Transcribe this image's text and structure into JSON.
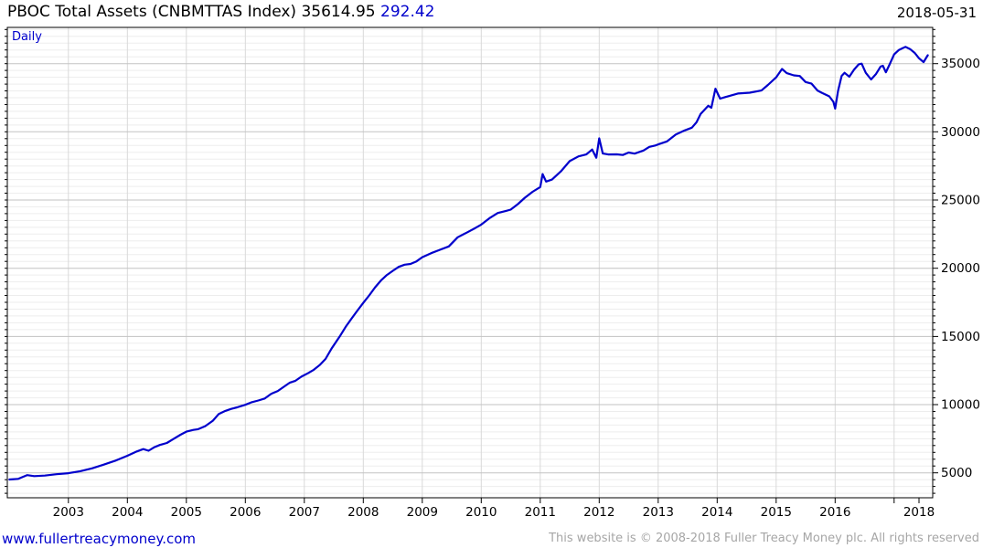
{
  "header": {
    "title_main": "PBOC Total Assets (CNBMTTAS Index) 35614.95",
    "title_change": "292.42",
    "date": "2018-05-31"
  },
  "chart": {
    "frequency_label": "Daily"
  },
  "footer": {
    "site": "www.fullertreacymoney.com",
    "copyright": "This website is © 2008-2018 Fuller Treacy Money plc. All rights reserved"
  },
  "colors": {
    "line": "#0000cc",
    "accent_text": "#0000cc",
    "major_grid": "#c3c3c3",
    "minor_grid": "#ededed",
    "year_grid": "#d9d9d9",
    "border": "#000000",
    "muted_text": "#a6a6a6"
  },
  "chart_data": {
    "type": "line",
    "title": "PBOC Total Assets (CNBMTTAS Index)",
    "frequency": "Daily",
    "last_value": 35614.95,
    "change": 292.42,
    "as_of_date": "2018-05-31",
    "ylim": [
      3200,
      37650
    ],
    "y_ticks": [
      5000,
      10000,
      15000,
      20000,
      25000,
      30000,
      35000
    ],
    "y_minor_step": 500,
    "x_tick_labels": [
      "2003",
      "2004",
      "2005",
      "2006",
      "2007",
      "2008",
      "2009",
      "2010",
      "2011",
      "2012",
      "2013",
      "2014",
      "2015",
      "2016",
      "2018"
    ],
    "grid": true,
    "legend_position": "none",
    "series": [
      {
        "name": "PBOC Total Assets (CNBMTTAS Index)",
        "points": [
          [
            2002.0,
            4510
          ],
          [
            2002.15,
            4560
          ],
          [
            2002.3,
            4830
          ],
          [
            2002.42,
            4760
          ],
          [
            2002.6,
            4800
          ],
          [
            2002.8,
            4900
          ],
          [
            2003.0,
            4970
          ],
          [
            2003.2,
            5120
          ],
          [
            2003.4,
            5330
          ],
          [
            2003.6,
            5600
          ],
          [
            2003.8,
            5900
          ],
          [
            2004.0,
            6250
          ],
          [
            2004.16,
            6570
          ],
          [
            2004.27,
            6740
          ],
          [
            2004.36,
            6620
          ],
          [
            2004.45,
            6860
          ],
          [
            2004.55,
            7040
          ],
          [
            2004.67,
            7190
          ],
          [
            2004.78,
            7480
          ],
          [
            2004.9,
            7790
          ],
          [
            2005.0,
            8020
          ],
          [
            2005.12,
            8150
          ],
          [
            2005.2,
            8200
          ],
          [
            2005.32,
            8420
          ],
          [
            2005.45,
            8820
          ],
          [
            2005.55,
            9320
          ],
          [
            2005.66,
            9540
          ],
          [
            2005.76,
            9690
          ],
          [
            2005.86,
            9800
          ],
          [
            2006.0,
            9990
          ],
          [
            2006.1,
            10160
          ],
          [
            2006.22,
            10300
          ],
          [
            2006.33,
            10450
          ],
          [
            2006.44,
            10800
          ],
          [
            2006.55,
            11000
          ],
          [
            2006.65,
            11300
          ],
          [
            2006.75,
            11600
          ],
          [
            2006.85,
            11750
          ],
          [
            2006.95,
            12050
          ],
          [
            2007.06,
            12300
          ],
          [
            2007.16,
            12550
          ],
          [
            2007.26,
            12900
          ],
          [
            2007.36,
            13350
          ],
          [
            2007.46,
            14100
          ],
          [
            2007.6,
            15000
          ],
          [
            2007.7,
            15700
          ],
          [
            2007.8,
            16300
          ],
          [
            2007.9,
            16900
          ],
          [
            2008.0,
            17460
          ],
          [
            2008.1,
            18000
          ],
          [
            2008.2,
            18600
          ],
          [
            2008.3,
            19100
          ],
          [
            2008.4,
            19500
          ],
          [
            2008.5,
            19810
          ],
          [
            2008.6,
            20100
          ],
          [
            2008.7,
            20260
          ],
          [
            2008.8,
            20310
          ],
          [
            2008.9,
            20500
          ],
          [
            2009.0,
            20810
          ],
          [
            2009.15,
            21100
          ],
          [
            2009.3,
            21350
          ],
          [
            2009.45,
            21600
          ],
          [
            2009.6,
            22270
          ],
          [
            2009.75,
            22600
          ],
          [
            2009.9,
            22950
          ],
          [
            2010.0,
            23200
          ],
          [
            2010.15,
            23700
          ],
          [
            2010.28,
            24050
          ],
          [
            2010.42,
            24200
          ],
          [
            2010.5,
            24300
          ],
          [
            2010.62,
            24700
          ],
          [
            2010.74,
            25170
          ],
          [
            2010.87,
            25600
          ],
          [
            2011.0,
            25950
          ],
          [
            2011.04,
            26900
          ],
          [
            2011.1,
            26350
          ],
          [
            2011.2,
            26500
          ],
          [
            2011.35,
            27100
          ],
          [
            2011.5,
            27850
          ],
          [
            2011.65,
            28200
          ],
          [
            2011.78,
            28340
          ],
          [
            2011.88,
            28700
          ],
          [
            2011.95,
            28100
          ],
          [
            2012.0,
            29520
          ],
          [
            2012.06,
            28410
          ],
          [
            2012.15,
            28340
          ],
          [
            2012.3,
            28350
          ],
          [
            2012.4,
            28300
          ],
          [
            2012.5,
            28480
          ],
          [
            2012.6,
            28400
          ],
          [
            2012.75,
            28630
          ],
          [
            2012.85,
            28900
          ],
          [
            2012.95,
            29000
          ],
          [
            2013.0,
            29080
          ],
          [
            2013.15,
            29300
          ],
          [
            2013.3,
            29800
          ],
          [
            2013.45,
            30100
          ],
          [
            2013.57,
            30300
          ],
          [
            2013.65,
            30700
          ],
          [
            2013.72,
            31310
          ],
          [
            2013.85,
            31910
          ],
          [
            2013.9,
            31760
          ],
          [
            2013.97,
            33165
          ],
          [
            2014.05,
            32430
          ],
          [
            2014.13,
            32540
          ],
          [
            2014.35,
            32805
          ],
          [
            2014.55,
            32870
          ],
          [
            2014.75,
            33030
          ],
          [
            2014.86,
            33435
          ],
          [
            2015.0,
            33990
          ],
          [
            2015.1,
            34610
          ],
          [
            2015.18,
            34300
          ],
          [
            2015.3,
            34140
          ],
          [
            2015.4,
            34095
          ],
          [
            2015.5,
            33650
          ],
          [
            2015.6,
            33530
          ],
          [
            2015.7,
            33030
          ],
          [
            2015.77,
            32870
          ],
          [
            2015.9,
            32600
          ],
          [
            2015.97,
            32200
          ],
          [
            2016.0,
            31700
          ],
          [
            2016.05,
            33000
          ],
          [
            2016.11,
            34100
          ],
          [
            2016.16,
            34330
          ],
          [
            2016.24,
            34040
          ],
          [
            2016.32,
            34550
          ],
          [
            2016.4,
            34950
          ],
          [
            2016.45,
            35000
          ],
          [
            2016.52,
            34330
          ],
          [
            2016.61,
            33840
          ],
          [
            2016.69,
            34220
          ],
          [
            2016.77,
            34780
          ],
          [
            2016.81,
            34845
          ],
          [
            2016.86,
            34370
          ],
          [
            2016.92,
            34900
          ],
          [
            2017.0,
            35670
          ],
          [
            2017.08,
            36000
          ],
          [
            2017.16,
            36160
          ],
          [
            2017.19,
            36230
          ],
          [
            2017.27,
            36070
          ],
          [
            2017.35,
            35780
          ],
          [
            2017.42,
            35400
          ],
          [
            2017.5,
            35110
          ],
          [
            2017.57,
            35615
          ]
        ]
      }
    ]
  }
}
